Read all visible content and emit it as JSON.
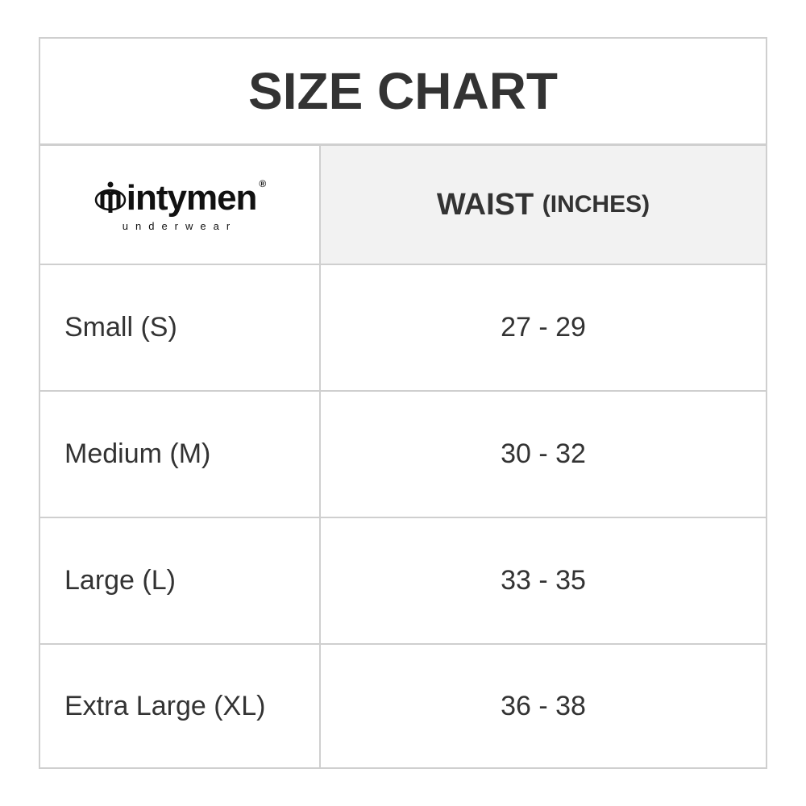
{
  "title": "SIZE CHART",
  "logo": {
    "brand": "intymen",
    "tagline": "underwear",
    "registered": "®"
  },
  "header": {
    "column": "WAIST",
    "unit": "(INCHES)"
  },
  "rows": [
    {
      "size": "Small (S)",
      "waist": "27 - 29"
    },
    {
      "size": "Medium (M)",
      "waist": "30 - 32"
    },
    {
      "size": "Large (L)",
      "waist": "33 - 35"
    },
    {
      "size": "Extra Large (XL)",
      "waist": "36 - 38"
    }
  ]
}
